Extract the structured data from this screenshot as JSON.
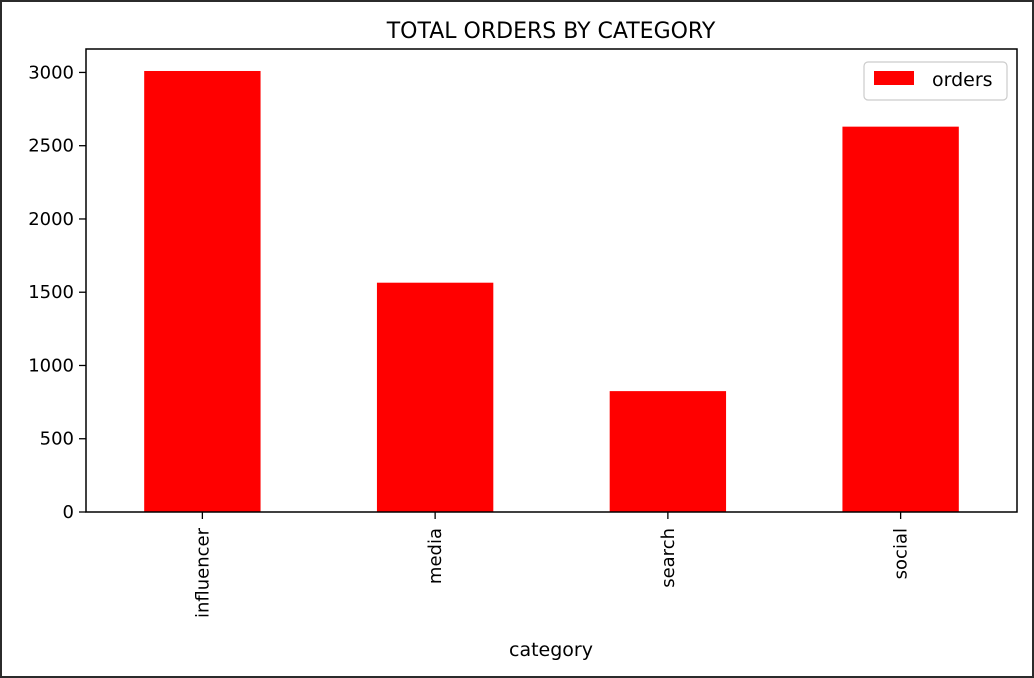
{
  "chart_data": {
    "type": "bar",
    "title": "TOTAL ORDERS BY CATEGORY",
    "xlabel": "category",
    "ylabel": "",
    "categories": [
      "influencer",
      "media",
      "search",
      "social"
    ],
    "series": [
      {
        "name": "orders",
        "values": [
          3010,
          1565,
          825,
          2630
        ],
        "color": "#ff0000"
      }
    ],
    "ylim": [
      0,
      3160
    ],
    "yticks": [
      0,
      500,
      1000,
      1500,
      2000,
      2500,
      3000
    ],
    "ytick_labels": [
      "0",
      "500",
      "1000",
      "1500",
      "2000",
      "2500",
      "3000"
    ],
    "legend": {
      "position": "top-right",
      "labels": [
        "orders"
      ]
    },
    "grid": false
  }
}
